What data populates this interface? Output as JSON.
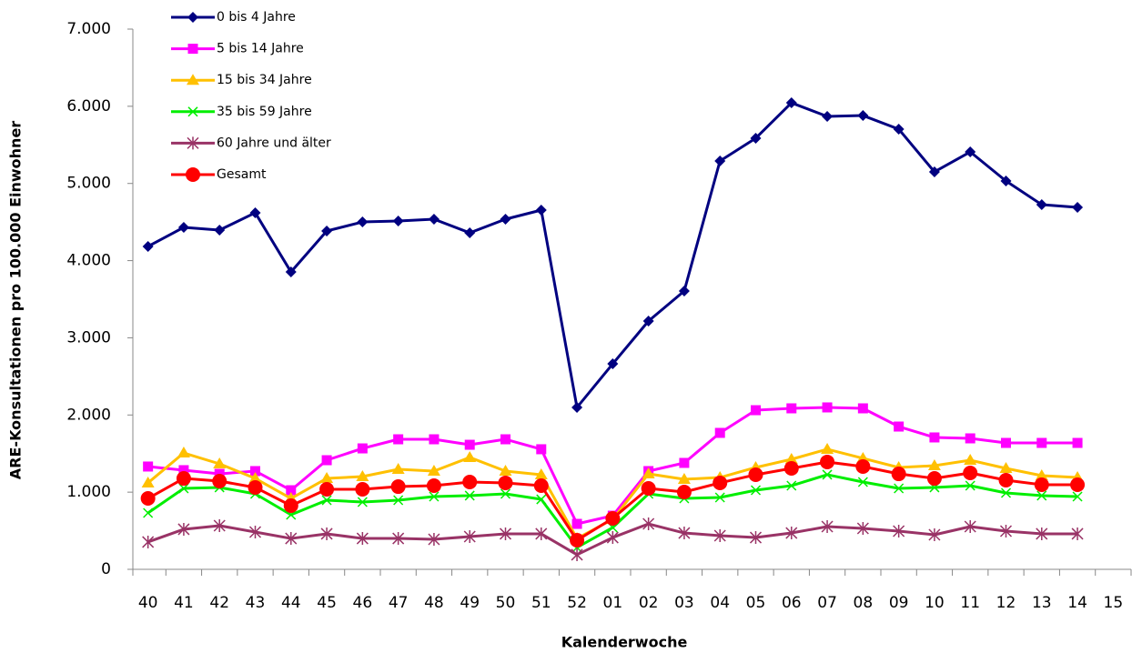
{
  "chart_data": {
    "type": "line",
    "x_label": "Kalenderwoche",
    "y_label": "ARE-Konsultationen pro 100.000 Einwohner",
    "categories": [
      "40",
      "41",
      "42",
      "43",
      "44",
      "45",
      "46",
      "47",
      "48",
      "49",
      "50",
      "51",
      "52",
      "01",
      "02",
      "03",
      "04",
      "05",
      "06",
      "07",
      "08",
      "09",
      "10",
      "11",
      "12",
      "13",
      "14",
      "15"
    ],
    "ylim": [
      0,
      7000
    ],
    "yticks": [
      0,
      {
        "value": 1000,
        "label": "1.000"
      },
      {
        "value": 2000,
        "label": "2.000"
      },
      {
        "value": 3000,
        "label": "3.000"
      },
      {
        "value": 4000,
        "label": "4.000"
      },
      {
        "value": 5000,
        "label": "5.000"
      },
      {
        "value": 6000,
        "label": "6.000"
      },
      {
        "value": 7000,
        "label": "7.000"
      }
    ],
    "series": [
      {
        "name": "0 bis 4 Jahre",
        "color": "#000080",
        "marker": "diamond",
        "values": [
          4184,
          4431,
          4396,
          4620,
          3853,
          4384,
          4501,
          4513,
          4537,
          4360,
          4537,
          4655,
          2098,
          2663,
          3217,
          3606,
          5291,
          5586,
          6045,
          5869,
          5880,
          5704,
          5150,
          5409,
          5032,
          4725,
          4690,
          null
        ]
      },
      {
        "name": "5 bis 14 Jahre",
        "color": "#ff00ff",
        "marker": "square",
        "values": [
          1332,
          1285,
          1237,
          1273,
          1025,
          1414,
          1567,
          1685,
          1685,
          1614,
          1685,
          1556,
          589,
          695,
          1273,
          1379,
          1768,
          2062,
          2086,
          2098,
          2086,
          1850,
          1709,
          1697,
          1638,
          1638,
          1638,
          null
        ]
      },
      {
        "name": "15 bis 34 Jahre",
        "color": "#ffc000",
        "marker": "triangle",
        "values": [
          1120,
          1508,
          1367,
          1178,
          919,
          1178,
          1202,
          1296,
          1273,
          1450,
          1273,
          1226,
          400,
          648,
          1237,
          1167,
          1190,
          1320,
          1426,
          1556,
          1438,
          1320,
          1343,
          1414,
          1308,
          1214,
          1190,
          null
        ]
      },
      {
        "name": "35 bis 59 Jahre",
        "color": "#00ee00",
        "marker": "x",
        "values": [
          731,
          1049,
          1061,
          978,
          707,
          896,
          872,
          896,
          943,
          955,
          978,
          907,
          283,
          542,
          978,
          919,
          931,
          1025,
          1084,
          1226,
          1131,
          1049,
          1061,
          1084,
          990,
          955,
          943,
          null
        ]
      },
      {
        "name": "60 Jahre und älter",
        "color": "#993366",
        "marker": "star",
        "values": [
          354,
          519,
          566,
          483,
          400,
          460,
          400,
          400,
          389,
          424,
          460,
          460,
          189,
          412,
          589,
          471,
          436,
          412,
          471,
          554,
          530,
          495,
          448,
          554,
          495,
          460,
          460,
          null
        ]
      },
      {
        "name": "Gesamt",
        "color": "#ff0000",
        "marker": "circle",
        "values": [
          919,
          1178,
          1143,
          1061,
          825,
          1037,
          1037,
          1072,
          1084,
          1131,
          1120,
          1084,
          377,
          660,
          1049,
          1002,
          1120,
          1226,
          1308,
          1391,
          1332,
          1237,
          1178,
          1249,
          1155,
          1096,
          1096,
          null
        ]
      }
    ]
  }
}
